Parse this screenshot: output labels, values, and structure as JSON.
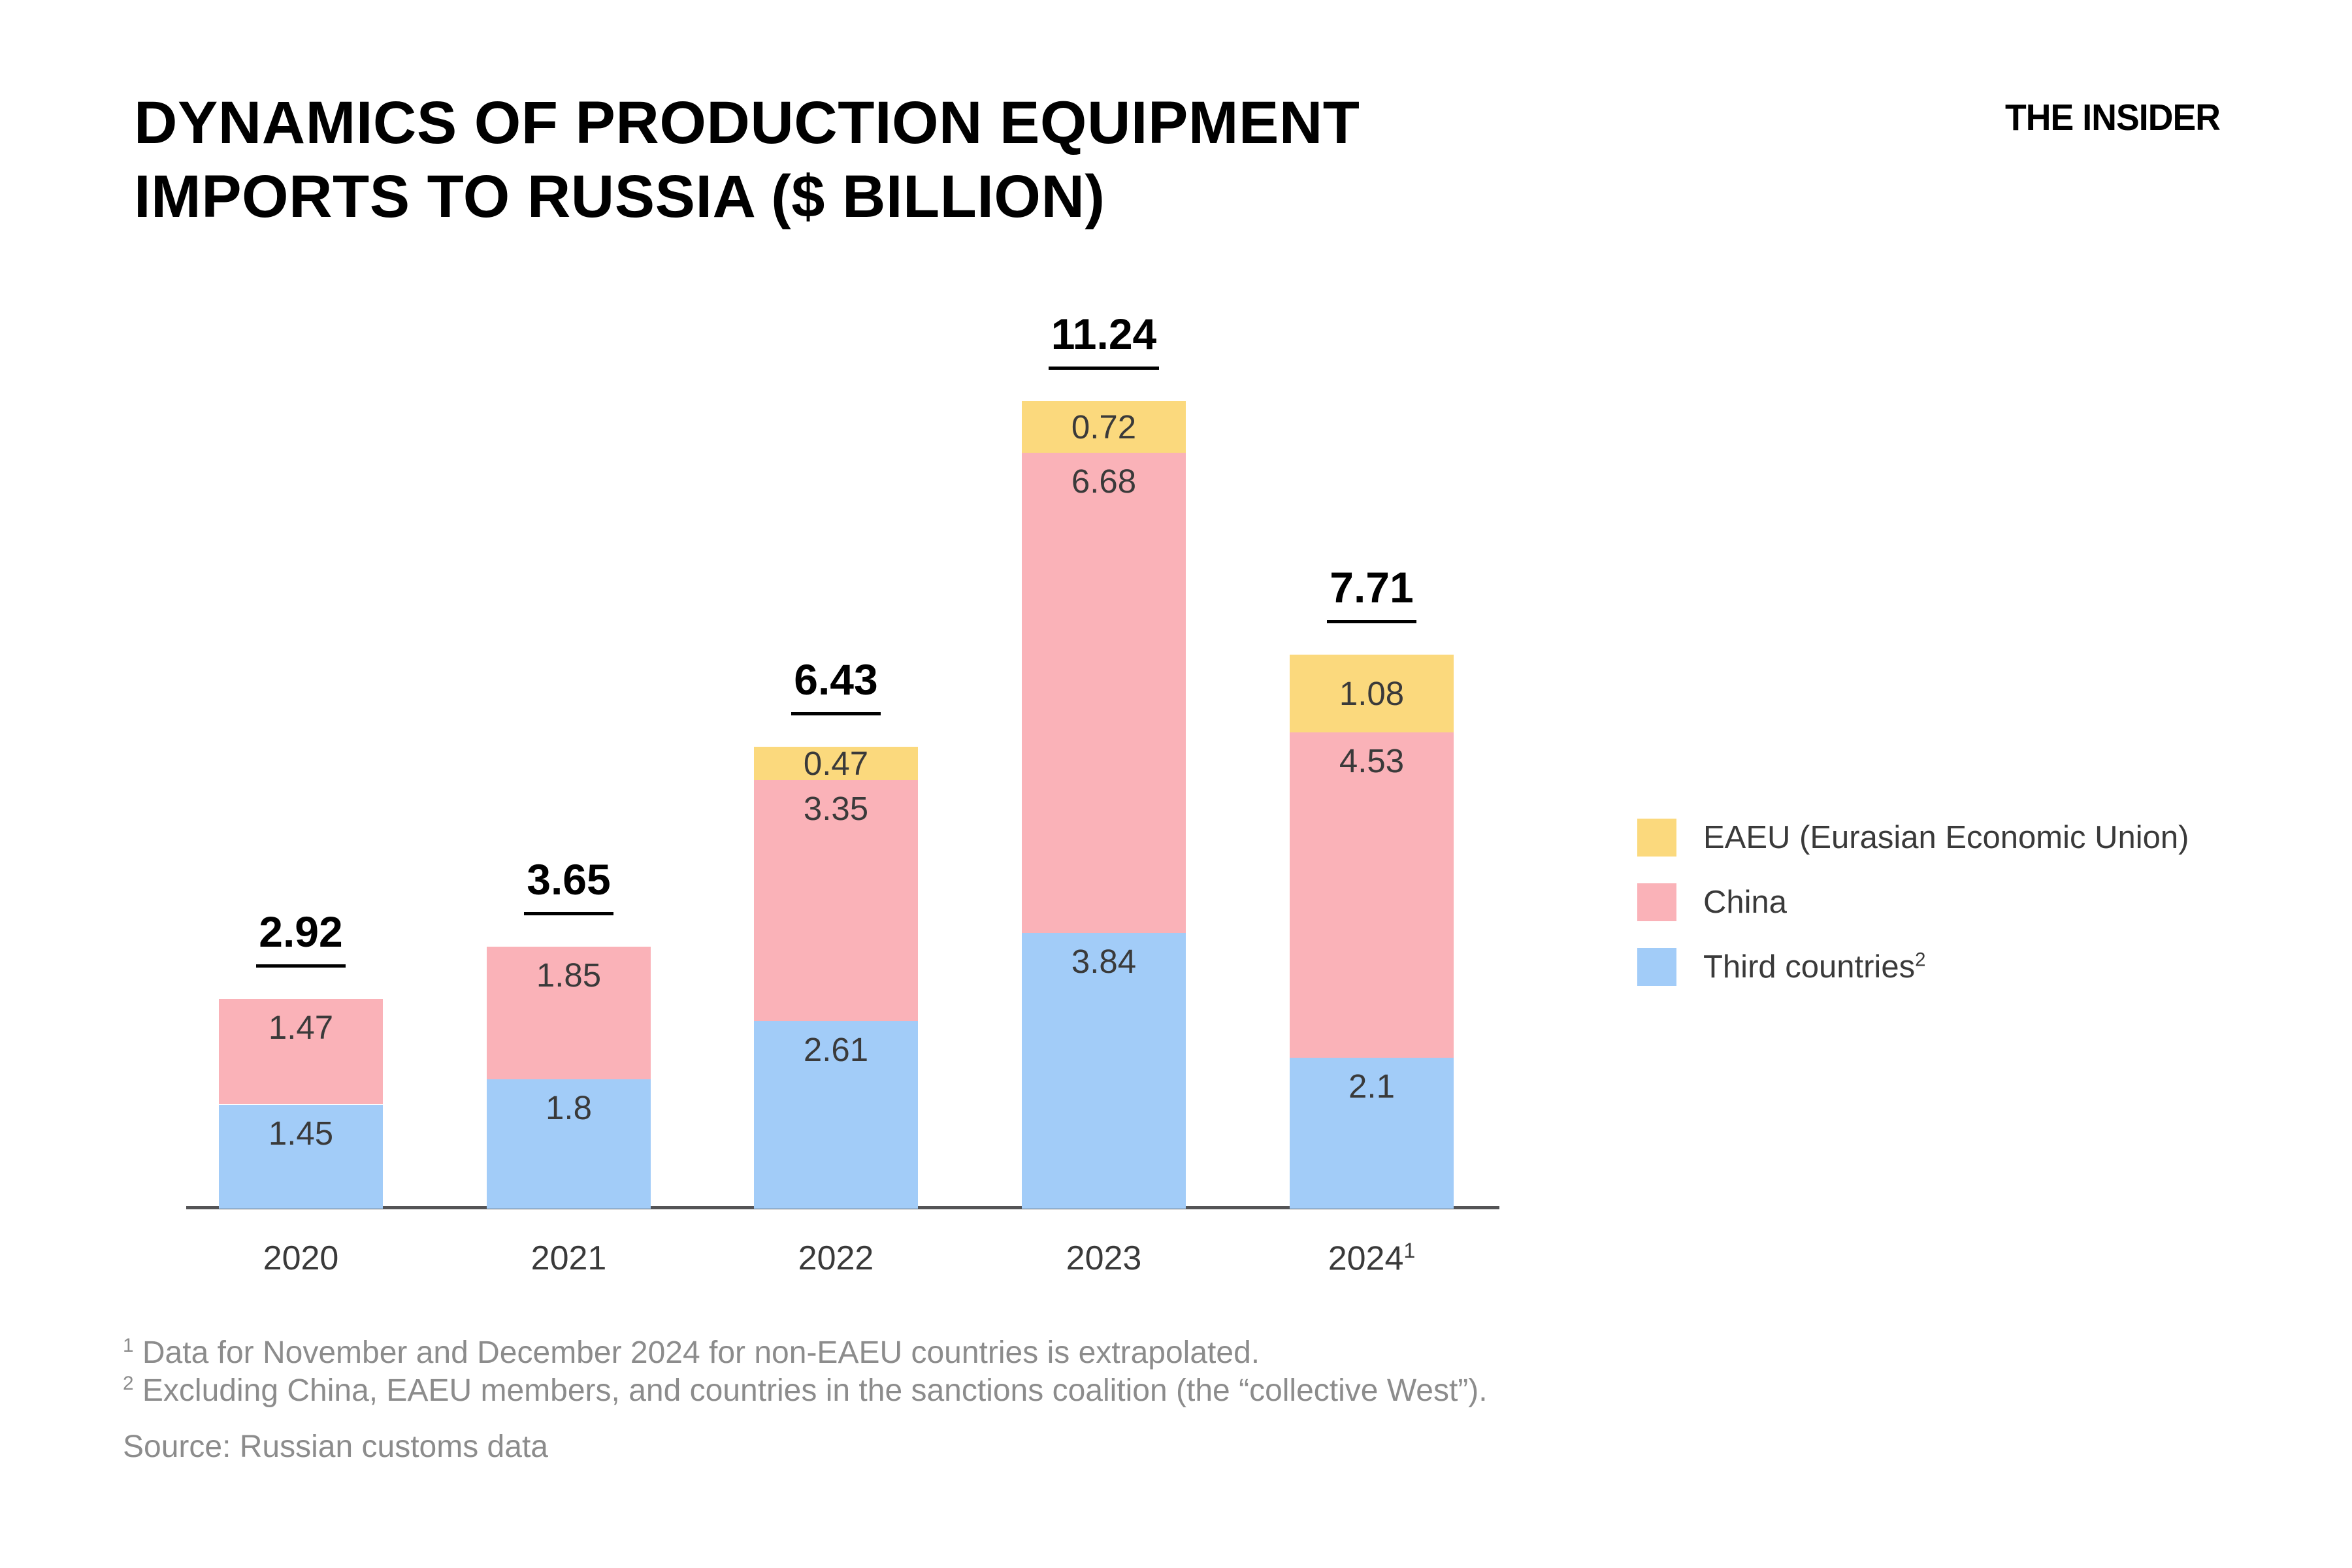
{
  "page": {
    "title_line1": "DYNAMICS OF PRODUCTION EQUIPMENT",
    "title_line2": "IMPORTS TO RUSSIA ($ BILLION)",
    "logo": "THE INSIDER"
  },
  "chart_data": {
    "type": "bar",
    "stacked": true,
    "title": "DYNAMICS OF PRODUCTION EQUIPMENT IMPORTS TO RUSSIA ($ BILLION)",
    "unit": "$ billion",
    "categories": [
      "2020",
      "2021",
      "2022",
      "2023",
      "2024"
    ],
    "category_superscripts": [
      "",
      "",
      "",
      "",
      "1"
    ],
    "series": [
      {
        "name": "Third countries",
        "name_superscript": "2",
        "color": "#A2CCF8",
        "values": [
          1.45,
          1.8,
          2.61,
          3.84,
          2.1
        ],
        "labels": [
          "1.45",
          "1.8",
          "2.61",
          "3.84",
          "2.1"
        ]
      },
      {
        "name": "China",
        "name_superscript": "",
        "color": "#FAB2B8",
        "values": [
          1.47,
          1.85,
          3.35,
          6.68,
          4.53
        ],
        "labels": [
          "1.47",
          "1.85",
          "3.35",
          "6.68",
          "4.53"
        ]
      },
      {
        "name": "EAEU (Eurasian Economic Union)",
        "name_superscript": "",
        "color": "#FBD97D",
        "values": [
          0,
          0,
          0.47,
          0.72,
          1.08
        ],
        "labels": [
          "",
          "",
          "0.47",
          "0.72",
          "1.08"
        ]
      }
    ],
    "totals": [
      "2.92",
      "3.65",
      "6.43",
      "11.24",
      "7.71"
    ],
    "ylim": [
      0,
      12
    ],
    "grid": false,
    "legend_position": "right",
    "axis_color": "#545456",
    "label_color": "#3a3a3a"
  },
  "legend": {
    "items": [
      {
        "label": "EAEU (Eurasian Economic Union)",
        "sup": "",
        "color": "#FBD97D"
      },
      {
        "label": "China",
        "sup": "",
        "color": "#FAB2B8"
      },
      {
        "label": "Third countries",
        "sup": "2",
        "color": "#A2CCF8"
      }
    ]
  },
  "footnotes": {
    "line1_sup": "1",
    "line1": " Data for November and December 2024 for non-EAEU countries is extrapolated.",
    "line2_sup": "2",
    "line2": " Excluding China, EAEU members, and countries in the sanctions coalition (the “collective West”).",
    "source": "Source: Russian customs data"
  }
}
